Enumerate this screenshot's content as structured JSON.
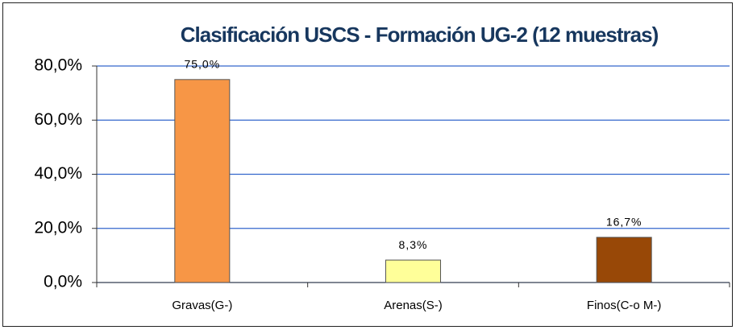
{
  "chart_data": {
    "type": "bar",
    "title": "Clasificación USCS - Formación UG-2 (12 muestras)",
    "categories": [
      "Gravas(G-)",
      "Arenas(S-)",
      "Finos(C-o M-)"
    ],
    "values": [
      75,
      8.3,
      16.7
    ],
    "value_labels": [
      "75,0%",
      "8,3%",
      "16,7%"
    ],
    "colors": [
      "#f79646",
      "#ffff99",
      "#984807"
    ],
    "ylim": [
      0,
      80
    ],
    "yticks": [
      {
        "value": 0,
        "label": "0,0%"
      },
      {
        "value": 20,
        "label": "20,0%"
      },
      {
        "value": 40,
        "label": "40,0%"
      },
      {
        "value": 60,
        "label": "60,0%"
      },
      {
        "value": 80,
        "label": "80,0%"
      }
    ],
    "grid": true
  }
}
